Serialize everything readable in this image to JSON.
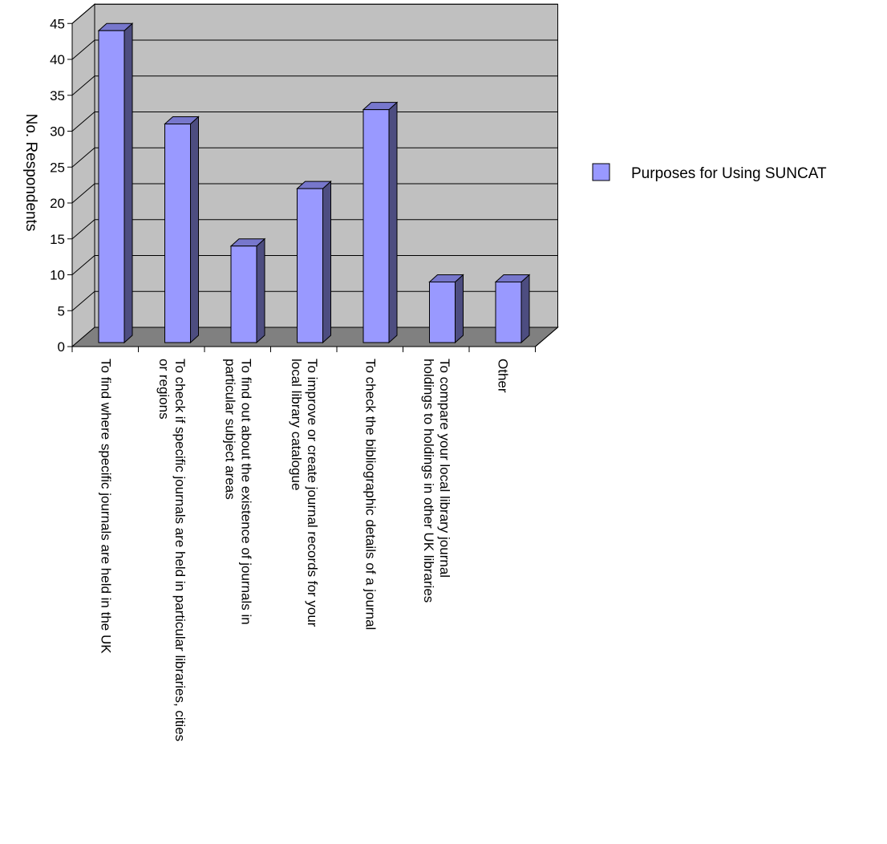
{
  "chart_data": {
    "type": "bar",
    "title": "",
    "xlabel": "",
    "ylabel": "No.  Respondents",
    "ylim": [
      0,
      45
    ],
    "yticks": [
      0,
      5,
      10,
      15,
      20,
      25,
      30,
      35,
      40,
      45
    ],
    "grid": true,
    "legend_position": "right",
    "categories": [
      [
        "To find where specific journals are held in the UK"
      ],
      [
        "To check if specific journals are held in particular libraries, cities",
        "or regions"
      ],
      [
        "To find out about the existence of journals in",
        "particular subject areas"
      ],
      [
        "To improve or create journal records for your",
        "local library catalogue"
      ],
      [
        "To check the bibliographic details of a journal"
      ],
      [
        "To compare your local library journal",
        "holdings to holdings in other UK libraries"
      ],
      [
        "Other"
      ]
    ],
    "series": [
      {
        "name": "Purposes for Using SUNCAT",
        "values": [
          44,
          31,
          14,
          22,
          33,
          9,
          9
        ]
      }
    ],
    "colors": {
      "bar_front": "#9999ff",
      "bar_side": "#4d4d80",
      "bar_top": "#7777cc",
      "wall": "#c0c0c0",
      "floor": "#808080",
      "grid": "#000000"
    }
  }
}
